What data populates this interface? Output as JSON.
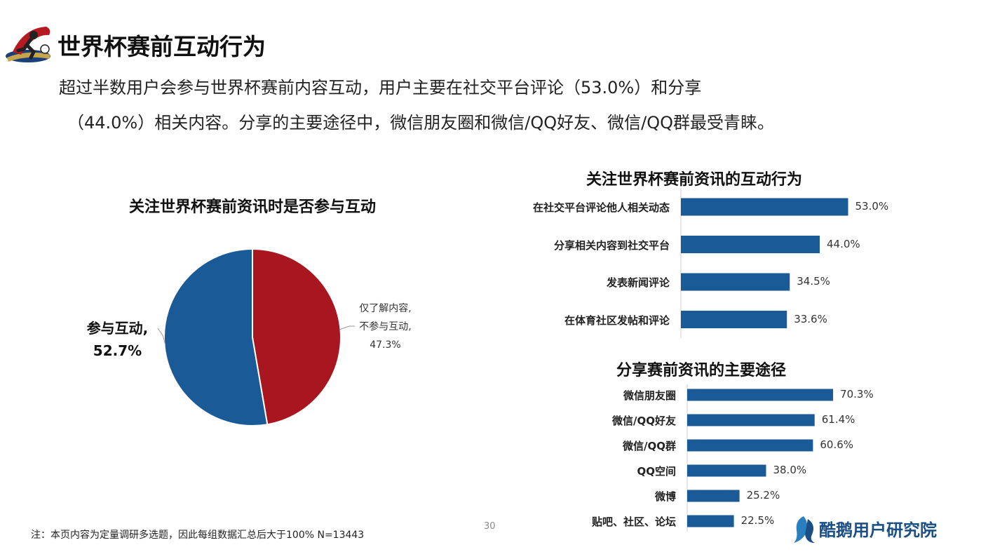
{
  "header": {
    "title": "世界杯赛前互动行为",
    "subtitle_line1": "超过半数用户会参与世界杯赛前内容互动，用户主要在社交平台评论（53.0%）和分享",
    "subtitle_line2": "（44.0%）相关内容。分享的主要途径中，微信朋友圈和微信/QQ好友、微信/QQ群最受青睐。"
  },
  "colors": {
    "blue": "#1a5a96",
    "red": "#a8171f",
    "bar": "#1a5a96",
    "brand": "#1a4f86"
  },
  "chart_data": [
    {
      "type": "pie",
      "title": "关注世界杯赛前资讯时是否参与互动",
      "slices": [
        {
          "name": "参与互动",
          "value": 52.7,
          "label_line1": "参与互动,",
          "label_line2": "52.7%",
          "color": "#1a5a96"
        },
        {
          "name": "仅了解内容，不参与互动",
          "value": 47.3,
          "label_line1": "仅了解内容,",
          "label_line2": "不参与互动,",
          "label_line3": "47.3%",
          "color": "#a8171f"
        }
      ]
    },
    {
      "type": "bar",
      "orientation": "horizontal",
      "title": "关注世界杯赛前资讯的互动行为",
      "categories": [
        "在社交平台评论他人相关动态",
        "分享相关内容到社交平台",
        "发表新闻评论",
        "在体育社区发帖和评论"
      ],
      "values": [
        53.0,
        44.0,
        34.5,
        33.6
      ],
      "value_labels": [
        "53.0%",
        "44.0%",
        "34.5%",
        "33.6%"
      ],
      "xlim": [
        0,
        100
      ]
    },
    {
      "type": "bar",
      "orientation": "horizontal",
      "title": "分享赛前资讯的主要途径",
      "categories": [
        "微信朋友圈",
        "微信/QQ好友",
        "微信/QQ群",
        "QQ空间",
        "微博",
        "贴吧、社区、论坛"
      ],
      "values": [
        70.3,
        61.4,
        60.6,
        38.0,
        25.2,
        22.5
      ],
      "value_labels": [
        "70.3%",
        "61.4%",
        "60.6%",
        "38.0%",
        "25.2%",
        "22.5%"
      ],
      "xlim": [
        0,
        100
      ]
    }
  ],
  "footer": {
    "note": "注：本页内容为定量调研多选题，因此每组数据汇总后大于100%   N=13443",
    "page_number": "30",
    "brand": "酷鹅用户研究院"
  }
}
